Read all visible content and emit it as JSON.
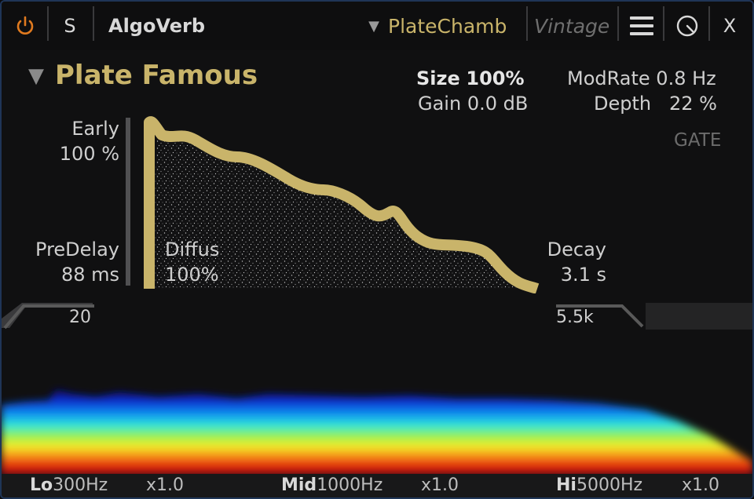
{
  "header": {
    "power_icon": "power-icon",
    "solo_label": "S",
    "plugin_name": "AlgoVerb",
    "preset_menu_icon": "triangle-down-icon",
    "preset_name": "PlateChamb",
    "bank_name": "Vintage",
    "menu_icon": "hamburger-menu-icon",
    "knob_icon": "knob-icon",
    "close_label": "X"
  },
  "algorithm": {
    "menu_icon": "triangle-down-icon",
    "title": "Plate Famous"
  },
  "params": {
    "size_label": "Size",
    "size_value": "100%",
    "gain_label": "Gain",
    "gain_value": "0.0 dB",
    "modrate_label": "ModRate",
    "modrate_value": "0.8 Hz",
    "depth_label": "Depth",
    "depth_value": "22 %",
    "gate_label": "GATE",
    "early_label": "Early",
    "early_value": "100 %",
    "predelay_label": "PreDelay",
    "predelay_value": "88 ms",
    "diffus_label": "Diffus",
    "diffus_value": "100%",
    "decay_label": "Decay",
    "decay_value": "3.1 s",
    "lowcut_value": "20",
    "hicut_value": "5.5k"
  },
  "bands": {
    "lo_label": "Lo",
    "lo_freq": "300Hz",
    "lo_mult": "x1.0",
    "mid_label": "Mid",
    "mid_freq": "1000Hz",
    "mid_mult": "x1.0",
    "hi_label": "Hi",
    "hi_freq": "5000Hz",
    "hi_mult": "x1.0"
  },
  "colors": {
    "accent": "#c9b46a",
    "border": "#1f3557",
    "power": "#e07a1f"
  }
}
